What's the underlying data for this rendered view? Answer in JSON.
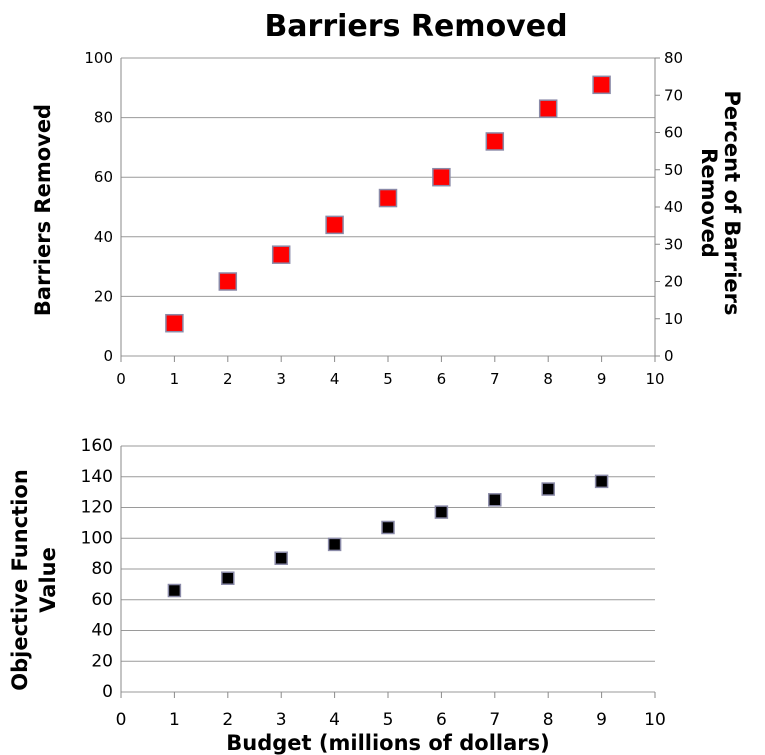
{
  "chart_data": [
    {
      "type": "scatter",
      "title": "Barriers Removed",
      "xlabel": "",
      "ylabel": "Barriers Removed",
      "y2label": "Percent of Barriers Removed",
      "x": [
        1,
        2,
        3,
        4,
        5,
        6,
        7,
        8,
        9
      ],
      "series": [
        {
          "values": [
            11,
            25,
            34,
            44,
            53,
            60,
            72,
            83,
            91
          ]
        }
      ],
      "xlim": [
        0,
        10
      ],
      "ylim": [
        0,
        100
      ],
      "y2lim": [
        0,
        80
      ],
      "xticks": [
        "0",
        "1",
        "2",
        "3",
        "4",
        "5",
        "6",
        "7",
        "8",
        "9",
        "10"
      ],
      "yticks": [
        "0",
        "20",
        "40",
        "60",
        "80",
        "100"
      ],
      "y2ticks": [
        "0",
        "10",
        "20",
        "30",
        "40",
        "50",
        "60",
        "70",
        "80"
      ],
      "grid": true,
      "marker": "square",
      "marker_color": "#ff0000",
      "marker_edge_color": "#8a8aa8"
    },
    {
      "type": "scatter",
      "title": "",
      "xlabel": "Budget (millions of dollars)",
      "ylabel": "Objective Function Value",
      "x": [
        1,
        2,
        3,
        4,
        5,
        6,
        7,
        8,
        9
      ],
      "series": [
        {
          "values": [
            66,
            74,
            87,
            96,
            107,
            117,
            125,
            132,
            137
          ]
        }
      ],
      "xlim": [
        0,
        10
      ],
      "ylim": [
        0,
        160
      ],
      "xticks": [
        "0",
        "1",
        "2",
        "3",
        "4",
        "5",
        "6",
        "7",
        "8",
        "9",
        "10"
      ],
      "yticks": [
        "0",
        "20",
        "40",
        "60",
        "80",
        "100",
        "120",
        "140",
        "160"
      ],
      "grid": true,
      "marker": "square",
      "marker_color": "#000000",
      "marker_edge_color": "#8a8aa8"
    }
  ]
}
